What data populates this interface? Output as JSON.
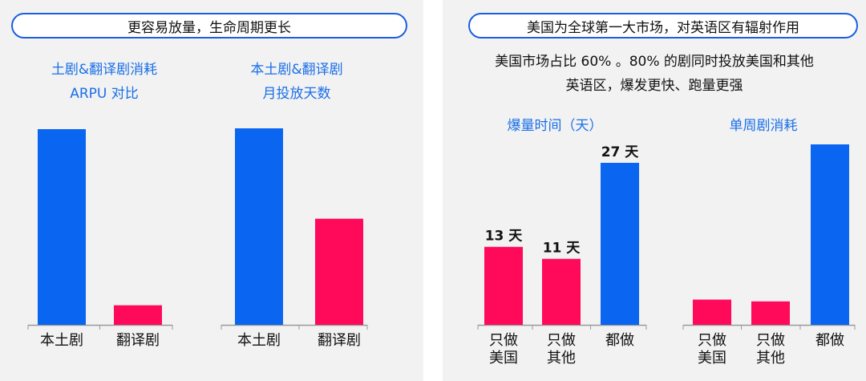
{
  "left": {
    "header": "更容易放量，生命周期更长",
    "charts": [
      {
        "title_lines": [
          "土剧&翻译剧消耗",
          "ARPU 对比"
        ]
      },
      {
        "title_lines": [
          "本土剧&翻译剧",
          "月投放天数"
        ]
      }
    ]
  },
  "right": {
    "header": "美国为全球第一大市场，对英语区有辐射作用",
    "desc_lines": [
      "美国市场占比 60% 。80% 的剧同时投放美国和其他",
      "英语区，爆发更快、跑量更强"
    ],
    "charts": [
      {
        "title": "爆量时间（天）"
      },
      {
        "title": "单周剧消耗"
      }
    ]
  },
  "colors": {
    "blue": "#0a66f0",
    "red": "#ff0a5a"
  },
  "chart_data": [
    {
      "type": "bar",
      "title": "土剧&翻译剧消耗 ARPU 对比",
      "categories": [
        "本土剧",
        "翻译剧"
      ],
      "values": [
        100,
        10
      ],
      "ylim": [
        0,
        100
      ],
      "grid": false
    },
    {
      "type": "bar",
      "title": "本土剧&翻译剧 月投放天数",
      "categories": [
        "本土剧",
        "翻译剧"
      ],
      "values": [
        100,
        54
      ],
      "ylim": [
        0,
        100
      ],
      "grid": false
    },
    {
      "type": "bar",
      "title": "爆量时间（天）",
      "categories": [
        "只做\n美国",
        "只做\n其他",
        "都做"
      ],
      "values": [
        13,
        11,
        27
      ],
      "data_labels": [
        "13 天",
        "11 天",
        "27 天"
      ],
      "ylim": [
        0,
        27
      ],
      "grid": false
    },
    {
      "type": "bar",
      "title": "单周剧消耗",
      "categories": [
        "只做\n美国",
        "只做\n其他",
        "都做"
      ],
      "values": [
        14,
        13,
        100
      ],
      "ylim": [
        0,
        100
      ],
      "grid": false
    }
  ]
}
